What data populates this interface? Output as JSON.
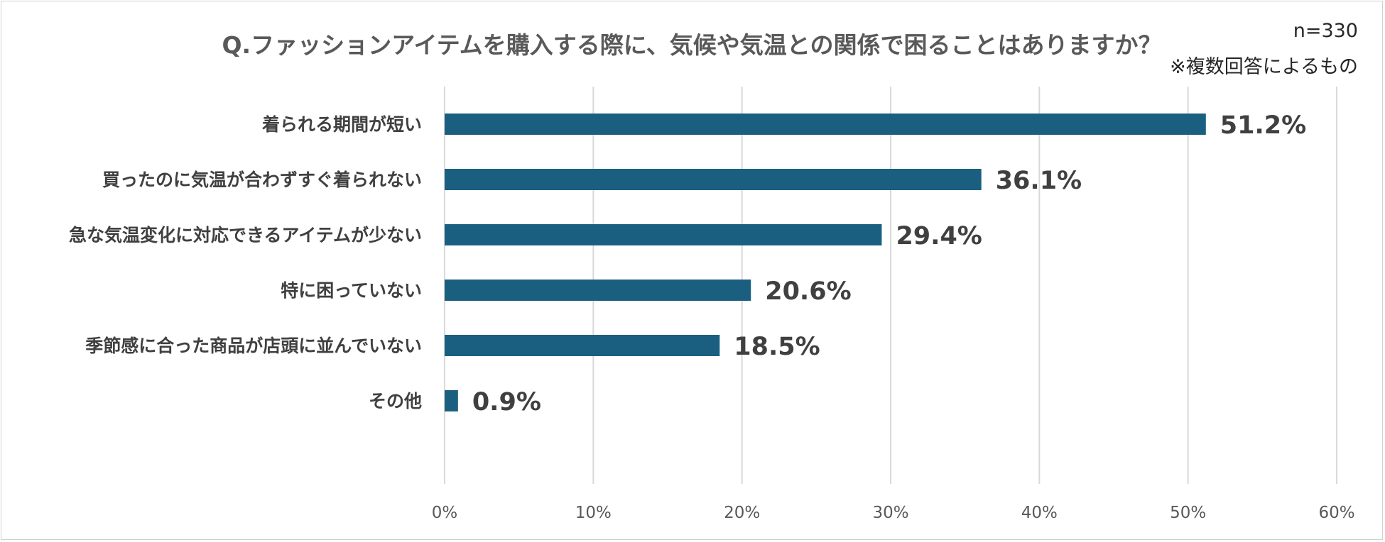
{
  "chart_data": {
    "type": "bar",
    "orientation": "horizontal",
    "title": "Q.ファッションアイテムを購入する際に、気候や気温との関係で困ることはありますか？",
    "notes": [
      "n=330",
      "※複数回答によるもの"
    ],
    "categories": [
      "着られる期間が短い",
      "買ったのに気温が合わずすぐ着られない",
      "急な気温変化に対応できるアイテムが少ない",
      "特に困っていない",
      "季節感に合った商品が店頭に並んでいない",
      "その他"
    ],
    "values": [
      51.2,
      36.1,
      29.4,
      20.6,
      18.5,
      0.9
    ],
    "value_labels": [
      "51.2%",
      "36.1%",
      "29.4%",
      "20.6%",
      "18.5%",
      "0.9%"
    ],
    "xlim": [
      0,
      60
    ],
    "x_ticks": [
      0,
      10,
      20,
      30,
      40,
      50,
      60
    ],
    "x_tick_labels": [
      "0%",
      "10%",
      "20%",
      "30%",
      "40%",
      "50%",
      "60%"
    ],
    "grid": true,
    "legend": "none",
    "bar_color": "#1a5f80",
    "grid_color": "#d9d9d9"
  }
}
